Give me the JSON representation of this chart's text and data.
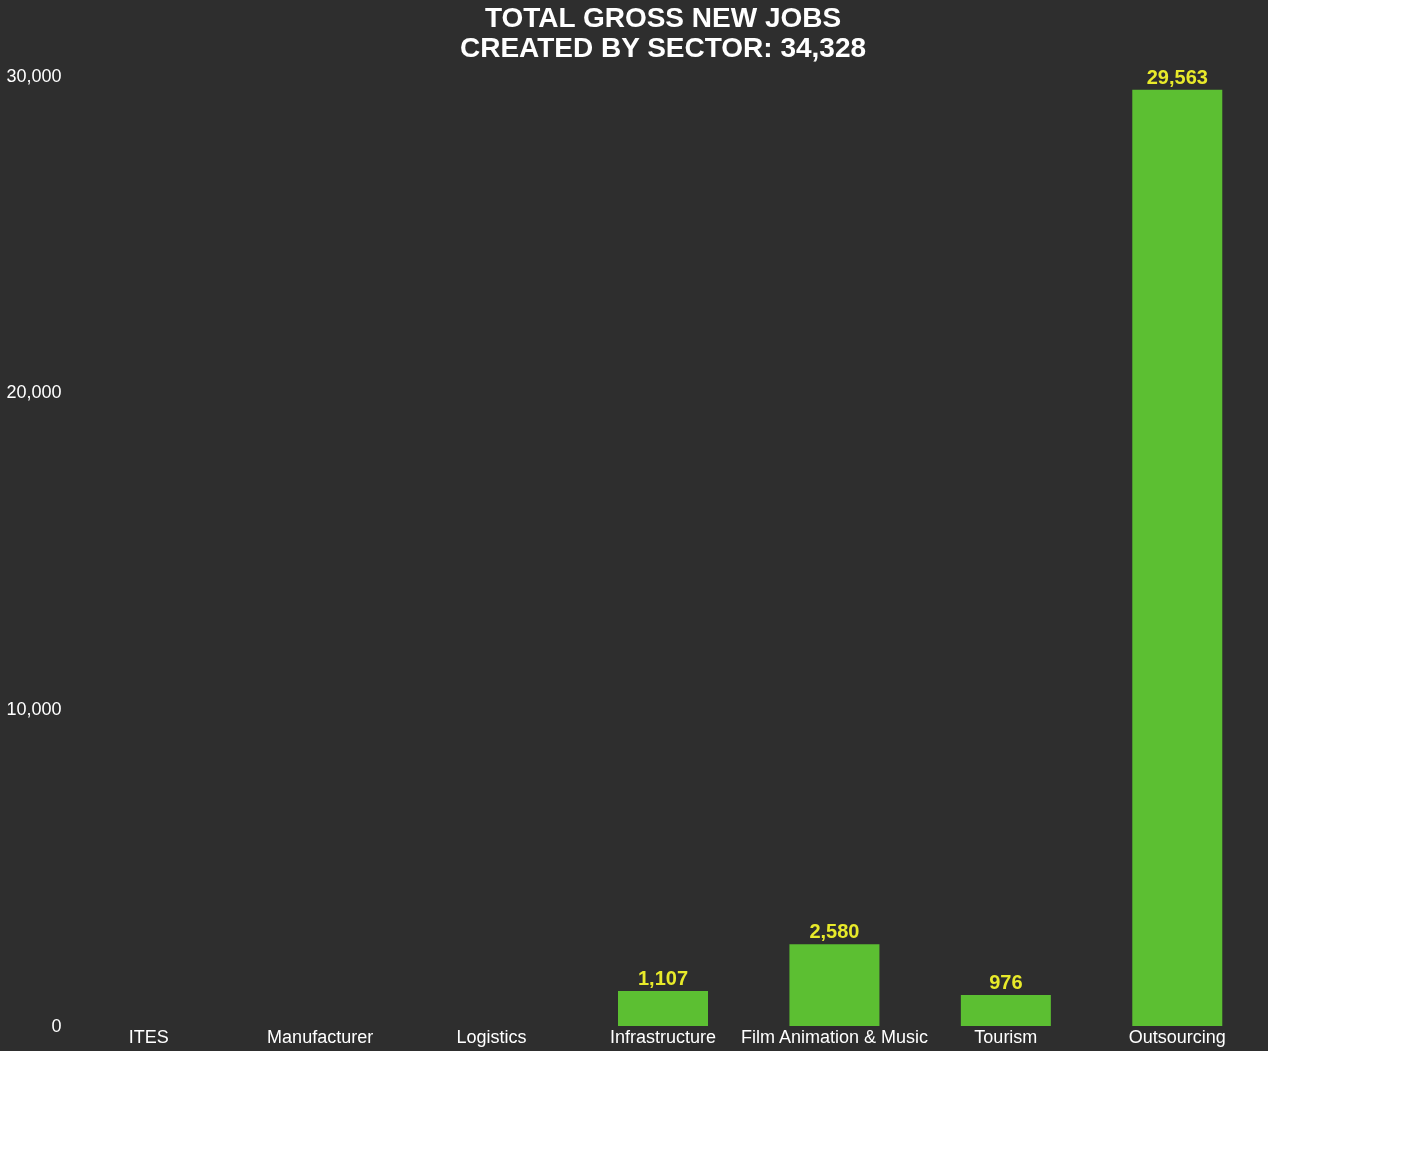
{
  "chart_data": {
    "type": "bar",
    "title": [
      "TOTAL GROSS NEW JOBS",
      "CREATED BY SECTOR: 34,328"
    ],
    "categories": [
      "ITES",
      "Manufacturer",
      "Logistics",
      "Infrastructure",
      "Film Animation & Music",
      "Tourism",
      "Outsourcing"
    ],
    "values": [
      0,
      0,
      0,
      1107,
      2580,
      976,
      29563
    ],
    "value_labels": [
      null,
      null,
      null,
      "1,107",
      "2,580",
      "976",
      "29,563"
    ],
    "colors": [
      "#e8ea2a",
      "#e8ea2a",
      "#e8ea2a",
      "#5cbf32",
      "#5cbf32",
      "#5cbf32",
      "#5cbf32"
    ],
    "ylim": [
      0,
      30000
    ],
    "yticks": [
      {
        "value": 0,
        "label": "0"
      },
      {
        "value": 10000,
        "label": "10,000"
      },
      {
        "value": 20000,
        "label": "20,000"
      },
      {
        "value": 30000,
        "label": "30,000"
      }
    ],
    "grid": false
  }
}
